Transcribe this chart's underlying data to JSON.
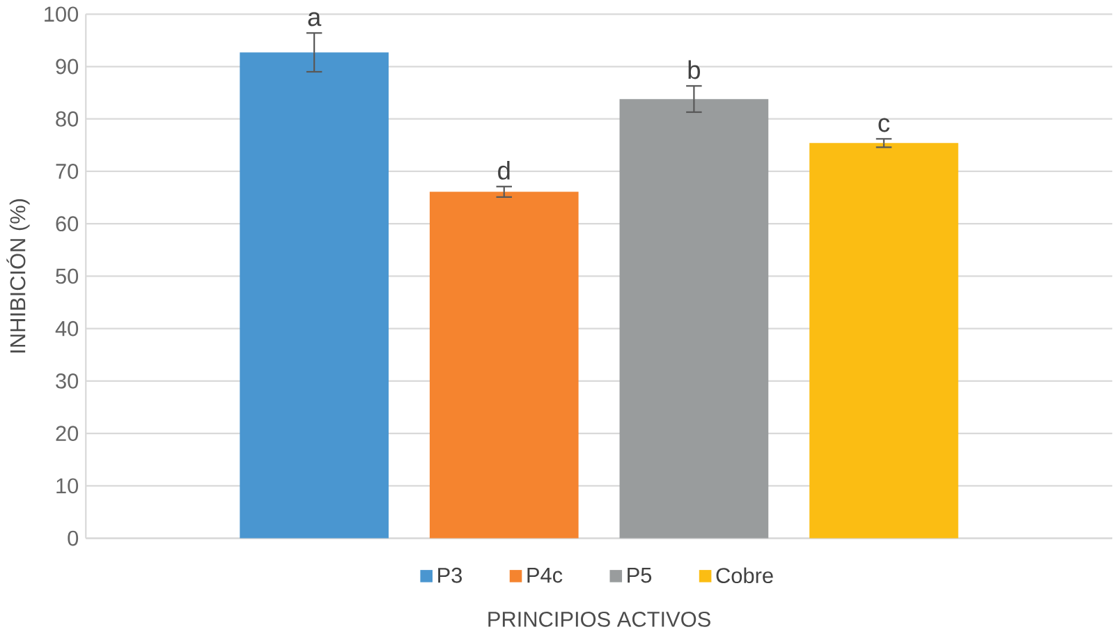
{
  "chart_data": {
    "type": "bar",
    "xlabel": "PRINCIPIOS ACTIVOS",
    "ylabel": "INHIBICIÓN (%)",
    "categories": [
      null
    ],
    "series": [
      {
        "name": "P3",
        "color": "#4a96d0",
        "values": [
          92.7
        ],
        "errors": [
          3.7
        ]
      },
      {
        "name": "P4c",
        "color": "#f5842f",
        "values": [
          66.1
        ],
        "errors": [
          1.0
        ]
      },
      {
        "name": "P5",
        "color": "#999c9d",
        "values": [
          83.8
        ],
        "errors": [
          2.5
        ]
      },
      {
        "name": "Cobre",
        "color": "#fbbd13",
        "values": [
          75.4
        ],
        "errors": [
          0.8
        ]
      }
    ],
    "annotations": [
      "a",
      "d",
      "b",
      "c"
    ],
    "ylim": [
      0,
      100
    ],
    "yticks": [
      0,
      10,
      20,
      30,
      40,
      50,
      60,
      70,
      80,
      90,
      100
    ],
    "grid": "y",
    "legend": "bottom"
  }
}
